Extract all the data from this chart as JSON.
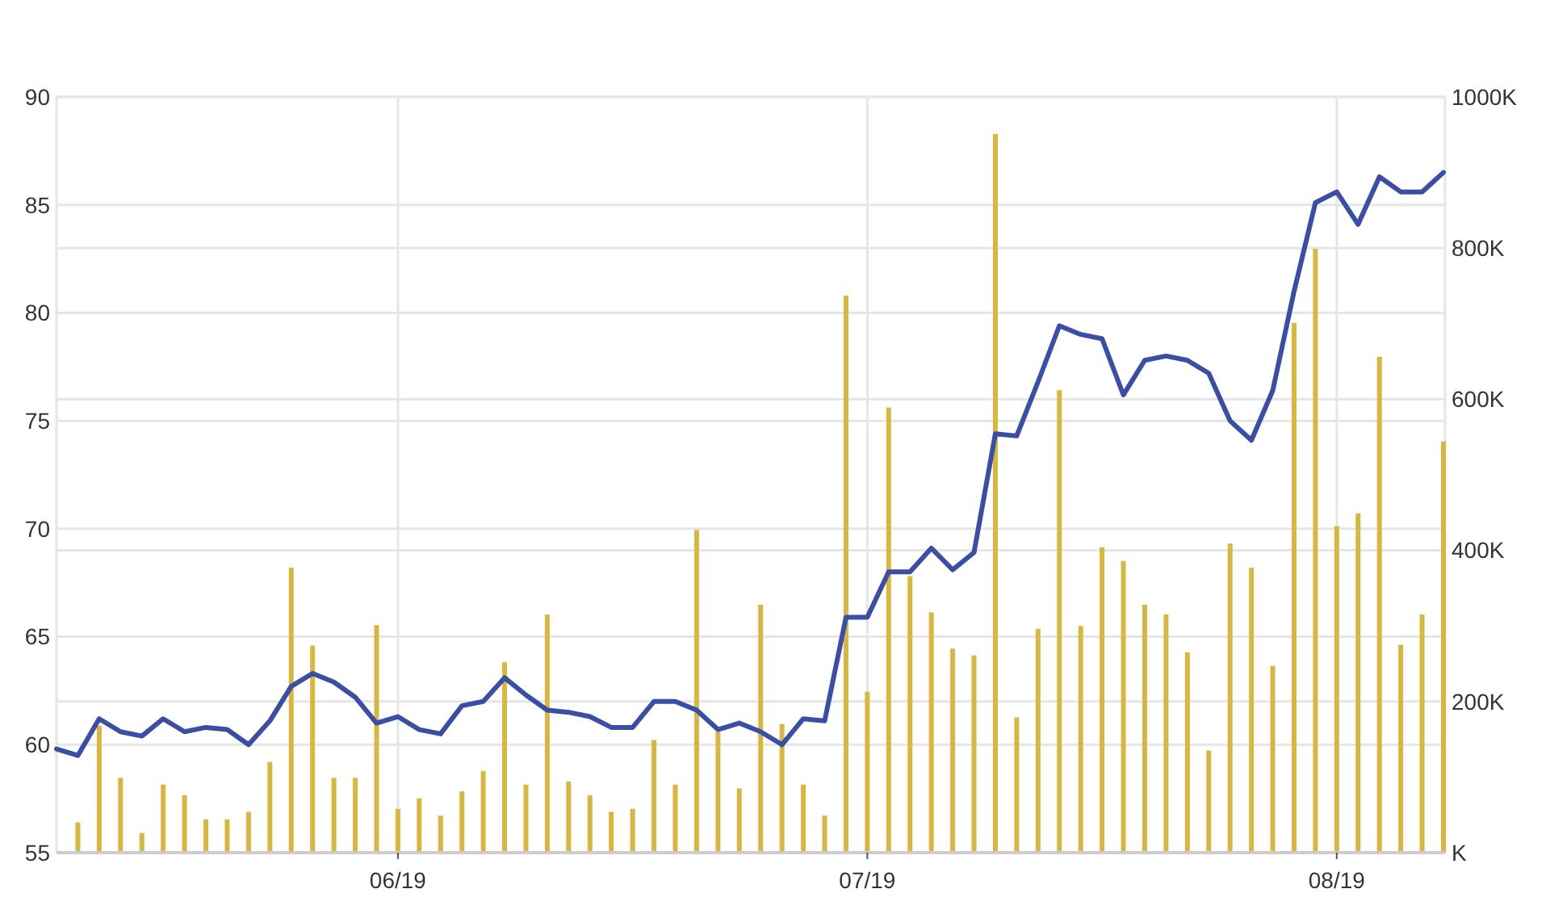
{
  "chart_data": {
    "type": "line",
    "categories": [
      null,
      null,
      null,
      null,
      null,
      null,
      null,
      null,
      null,
      null,
      null,
      null,
      null,
      null,
      null,
      null,
      "06/19",
      null,
      null,
      null,
      null,
      null,
      null,
      null,
      null,
      null,
      null,
      null,
      null,
      null,
      null,
      null,
      null,
      null,
      null,
      null,
      null,
      null,
      "07/19",
      null,
      null,
      null,
      null,
      null,
      null,
      null,
      null,
      null,
      null,
      null,
      null,
      null,
      null,
      null,
      null,
      null,
      null,
      null,
      null,
      null,
      "08/19",
      null,
      null,
      null,
      null,
      null
    ],
    "series": [
      {
        "type": "bar",
        "axis": "y2",
        "color": "#d8b740",
        "values": [
          null,
          40,
          168,
          99,
          26,
          90,
          76,
          44,
          44,
          54,
          120,
          377,
          274,
          99,
          99,
          301,
          58,
          72,
          49,
          81,
          108,
          252,
          90,
          315,
          94,
          76,
          54,
          58,
          149,
          90,
          427,
          160,
          85,
          328,
          170,
          90,
          49,
          737,
          213,
          589,
          366,
          318,
          270,
          261,
          951,
          179,
          296,
          612,
          300,
          404,
          386,
          328,
          315,
          265,
          135,
          409,
          377,
          247,
          701,
          799,
          432,
          449,
          656,
          275,
          315,
          544
        ]
      },
      {
        "color": "#3b4ea6",
        "values": [
          59.8,
          59.5,
          61.2,
          60.6,
          60.4,
          61.2,
          60.6,
          60.8,
          60.7,
          60.0,
          61.1,
          62.7,
          63.3,
          62.9,
          62.2,
          61.0,
          61.3,
          60.7,
          60.5,
          61.8,
          62.0,
          63.1,
          62.3,
          61.6,
          61.5,
          61.3,
          60.8,
          60.8,
          62.0,
          62.0,
          61.6,
          60.7,
          61.0,
          60.6,
          60.0,
          61.2,
          61.1,
          65.9,
          65.9,
          68.0,
          68.0,
          69.1,
          68.1,
          68.9,
          74.4,
          74.3,
          76.8,
          79.4,
          79.0,
          78.8,
          76.2,
          77.8,
          78.0,
          77.8,
          77.2,
          75.0,
          74.1,
          76.4,
          81.0,
          85.1,
          85.6,
          84.1,
          86.3,
          85.6,
          85.6,
          86.5
        ]
      }
    ],
    "ylim": [
      55,
      90
    ],
    "yticks": [
      55,
      60,
      65,
      70,
      75,
      80,
      85,
      90
    ],
    "y2lim": [
      0,
      1000
    ],
    "y2ticks": [
      {
        "value": 0,
        "label": "K"
      },
      {
        "value": 200,
        "label": "200K"
      },
      {
        "value": 400,
        "label": "400K"
      },
      {
        "value": 600,
        "label": "600K"
      },
      {
        "value": 800,
        "label": "800K"
      },
      {
        "value": 1000,
        "label": "1000K"
      }
    ],
    "grid": true
  }
}
